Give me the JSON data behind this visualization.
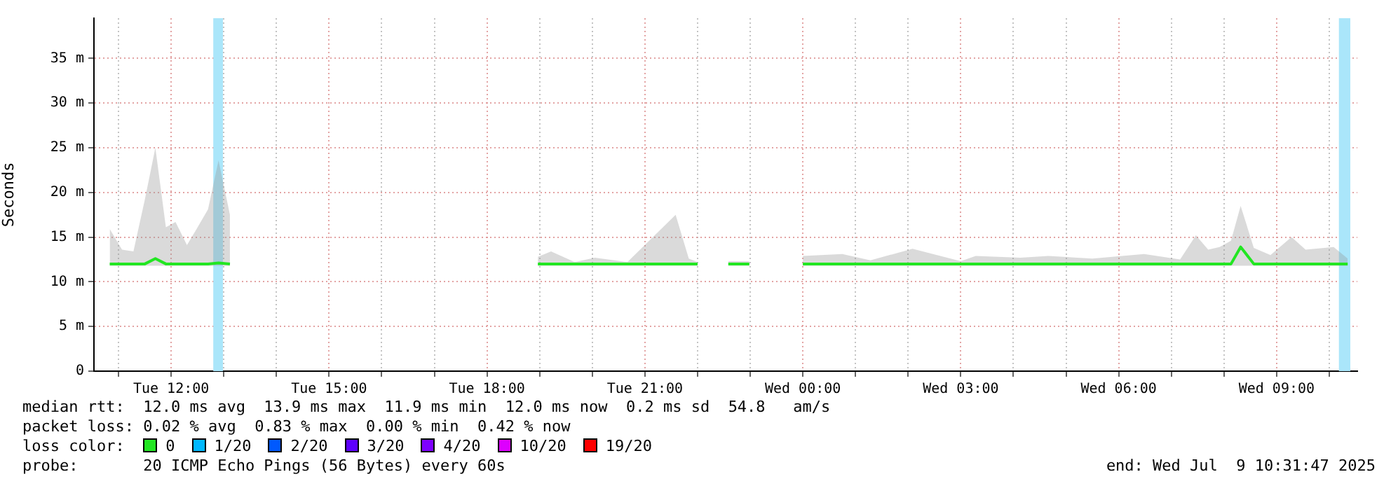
{
  "chart_data": {
    "type": "line",
    "ylabel": "Seconds",
    "legend_title": "loss color:",
    "legend": "bottom",
    "grid": true,
    "marker": "none",
    "line_style": "solid",
    "xlim": [
      "2025-07-08T10:32",
      "2025-07-09T10:32"
    ],
    "xticks": [
      {
        "value": "2025-07-08T11:00",
        "label": null
      },
      {
        "value": "2025-07-08T12:00",
        "label": "Tue 12:00"
      },
      {
        "value": "2025-07-08T13:00",
        "label": null
      },
      {
        "value": "2025-07-08T14:00",
        "label": null
      },
      {
        "value": "2025-07-08T15:00",
        "label": "Tue 15:00"
      },
      {
        "value": "2025-07-08T16:00",
        "label": null
      },
      {
        "value": "2025-07-08T17:00",
        "label": null
      },
      {
        "value": "2025-07-08T18:00",
        "label": "Tue 18:00"
      },
      {
        "value": "2025-07-08T19:00",
        "label": null
      },
      {
        "value": "2025-07-08T20:00",
        "label": null
      },
      {
        "value": "2025-07-08T21:00",
        "label": "Tue 21:00"
      },
      {
        "value": "2025-07-08T22:00",
        "label": null
      },
      {
        "value": "2025-07-08T23:00",
        "label": null
      },
      {
        "value": "2025-07-09T00:00",
        "label": "Wed 00:00"
      },
      {
        "value": "2025-07-09T01:00",
        "label": null
      },
      {
        "value": "2025-07-09T02:00",
        "label": null
      },
      {
        "value": "2025-07-09T03:00",
        "label": "Wed 03:00"
      },
      {
        "value": "2025-07-09T04:00",
        "label": null
      },
      {
        "value": "2025-07-09T05:00",
        "label": null
      },
      {
        "value": "2025-07-09T06:00",
        "label": "Wed 06:00"
      },
      {
        "value": "2025-07-09T07:00",
        "label": null
      },
      {
        "value": "2025-07-09T08:00",
        "label": null
      },
      {
        "value": "2025-07-09T09:00",
        "label": "Wed 09:00"
      },
      {
        "value": "2025-07-09T10:00",
        "label": null
      }
    ],
    "ylim": [
      0,
      39.5
    ],
    "yticks": [
      0,
      {
        "value": 5,
        "label": "5 m"
      },
      {
        "value": 10,
        "label": "10 m"
      },
      {
        "value": 15,
        "label": "15 m"
      },
      {
        "value": 20,
        "label": "20 m"
      },
      {
        "value": 25,
        "label": "25 m"
      },
      {
        "value": 30,
        "label": "30 m"
      },
      {
        "value": 35,
        "label": "35 m"
      }
    ],
    "bands": [
      {
        "axis": "x",
        "from": "2025-07-08T12:48",
        "to": "2025-07-08T12:59",
        "color": "#aae6fa"
      },
      {
        "axis": "x",
        "from": "2025-07-09T10:11",
        "to": "2025-07-09T10:24",
        "color": "#aae6fa"
      }
    ],
    "series": [
      {
        "name": "0",
        "color": "#22e622",
        "x": [
          "2025-07-08T10:50",
          "2025-07-08T11:04",
          "2025-07-08T11:17",
          "2025-07-08T11:30",
          "2025-07-08T11:42",
          "2025-07-08T11:54",
          "2025-07-08T12:05",
          "2025-07-08T12:18",
          "2025-07-08T12:29",
          "2025-07-08T12:42",
          "2025-07-08T12:54",
          "2025-07-08T13:07",
          "2025-07-08T15:00",
          "2025-07-08T18:58",
          "2025-07-08T19:13",
          "2025-07-08T19:40",
          "2025-07-08T20:03",
          "2025-07-08T20:40",
          "2025-07-08T21:35",
          "2025-07-08T21:50",
          "2025-07-08T22:00",
          "2025-07-08T22:20",
          "2025-07-08T22:35",
          "2025-07-08T22:59",
          "2025-07-08T23:30",
          "2025-07-09T00:00",
          "2025-07-09T00:45",
          "2025-07-09T01:17",
          "2025-07-09T02:05",
          "2025-07-09T03:00",
          "2025-07-09T03:17",
          "2025-07-09T04:08",
          "2025-07-09T04:40",
          "2025-07-09T05:30",
          "2025-07-09T06:29",
          "2025-07-09T07:10",
          "2025-07-09T07:28",
          "2025-07-09T07:42",
          "2025-07-09T07:55",
          "2025-07-09T08:08",
          "2025-07-09T08:19",
          "2025-07-09T08:34",
          "2025-07-09T08:53",
          "2025-07-09T09:17",
          "2025-07-09T09:33",
          "2025-07-09T10:05",
          "2025-07-09T10:21"
        ],
        "values": [
          12.0,
          12.0,
          12.0,
          12.0,
          12.6,
          12.0,
          12.0,
          12.0,
          12.0,
          12.0,
          12.1,
          12.0,
          null,
          12.0,
          12.0,
          12.0,
          12.0,
          12.0,
          12.0,
          12.0,
          12.0,
          null,
          12.0,
          12.0,
          null,
          12.0,
          12.0,
          12.0,
          12.0,
          12.0,
          12.0,
          12.0,
          12.0,
          12.0,
          12.0,
          12.0,
          12.0,
          12.0,
          12.0,
          12.0,
          13.9,
          12.0,
          12.0,
          12.0,
          12.0,
          12.0,
          12.0
        ],
        "lower": [
          11.8,
          11.8,
          11.8,
          11.8,
          11.8,
          11.8,
          11.8,
          11.8,
          11.8,
          11.8,
          11.8,
          11.8,
          null,
          11.8,
          11.8,
          11.8,
          11.8,
          11.8,
          11.8,
          11.8,
          11.8,
          null,
          11.8,
          11.8,
          null,
          11.8,
          11.8,
          11.8,
          11.8,
          11.8,
          11.8,
          11.8,
          11.8,
          11.8,
          11.8,
          11.8,
          11.8,
          11.8,
          11.8,
          11.8,
          11.8,
          11.8,
          11.8,
          11.8,
          11.8,
          11.8,
          11.8
        ],
        "upper": [
          15.9,
          13.6,
          13.4,
          19.2,
          25.0,
          16.1,
          16.7,
          14.1,
          15.9,
          18.1,
          23.6,
          17.5,
          null,
          12.8,
          13.4,
          12.2,
          12.7,
          12.2,
          17.5,
          12.6,
          12.2,
          null,
          12.3,
          12.3,
          null,
          12.9,
          13.1,
          12.4,
          13.7,
          12.3,
          12.9,
          12.7,
          12.9,
          12.6,
          13.1,
          12.5,
          15.2,
          13.6,
          13.9,
          14.6,
          18.5,
          13.8,
          13.0,
          15.0,
          13.6,
          13.9,
          12.6
        ]
      },
      {
        "name": "1/20",
        "color": "#00b8ff"
      },
      {
        "name": "2/20",
        "color": "#0059ff"
      },
      {
        "name": "3/20",
        "color": "#5e00ff"
      },
      {
        "name": "4/20",
        "color": "#7e00ff"
      },
      {
        "name": "10/20",
        "color": "#dd00ff"
      },
      {
        "name": "19/20",
        "color": "#ff0000"
      }
    ],
    "annotations": [
      "median rtt:  12.0 ms avg  13.9 ms max  11.9 ms min  12.0 ms now  0.2 ms sd  54.8   am/s",
      "packet loss: 0.02 % avg  0.83 % max  0.00 % min  0.42 % now",
      "probe:       20 ICMP Echo Pings (56 Bytes) every 60s",
      "end: Wed Jul  9 10:31:47 2025"
    ]
  }
}
